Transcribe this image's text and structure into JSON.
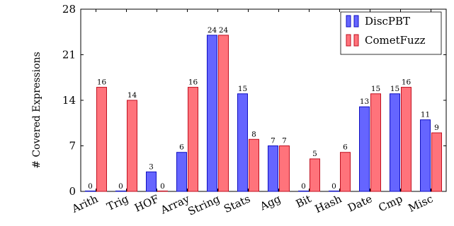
{
  "chart_data": {
    "type": "bar",
    "categories": [
      "Arith",
      "Trig",
      "HOF",
      "Array",
      "String",
      "Stats",
      "Agg",
      "Bit",
      "Hash",
      "Date",
      "Cmp",
      "Misc"
    ],
    "series": [
      {
        "name": "DiscPBT",
        "values": [
          0,
          0,
          3,
          6,
          24,
          15,
          7,
          0,
          0,
          13,
          15,
          11
        ],
        "color": "#4a4aff"
      },
      {
        "name": "CometFuzz",
        "values": [
          16,
          14,
          0,
          16,
          24,
          8,
          7,
          5,
          6,
          15,
          16,
          9
        ],
        "color": "#ff5a64"
      }
    ],
    "ylabel": "# Covered Expressions",
    "ylim": [
      0,
      28
    ],
    "yticks": [
      0,
      7,
      14,
      21,
      28
    ],
    "legend_position": "top-right",
    "data_labels": true,
    "grid": false
  }
}
